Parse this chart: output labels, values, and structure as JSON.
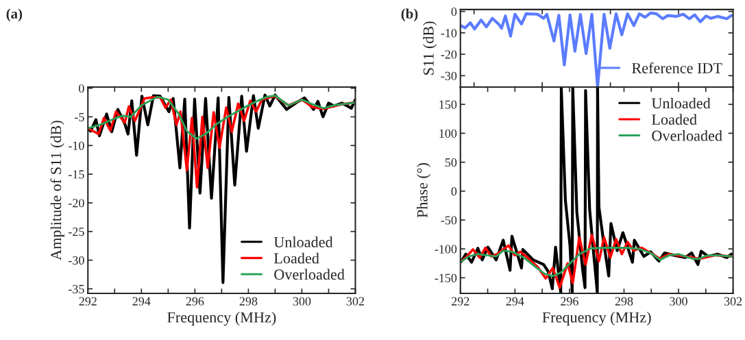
{
  "chart_data": [
    {
      "type": "line",
      "title": "(a)",
      "xlabel": "Frequency (MHz)",
      "ylabel": "Amplitude of S11 (dB)",
      "xlim": [
        292,
        302
      ],
      "xticks": [
        292,
        {
          "value": 293,
          "label": null
        },
        294,
        {
          "value": 295,
          "label": null
        },
        296,
        {
          "value": 297,
          "label": null
        },
        298,
        {
          "value": 299,
          "label": null
        },
        300,
        {
          "value": 301,
          "label": null
        },
        302
      ],
      "ylim": [
        -35.8,
        0.2
      ],
      "yticks": [
        0,
        -5,
        -10,
        -15,
        -20,
        -25,
        -30,
        -35
      ],
      "grid": false,
      "legend": "bottom right",
      "line_style": "solid",
      "marker": "none",
      "series": [
        {
          "name": "Unloaded",
          "color": "#000000",
          "x": [
            292.0,
            292.1,
            292.3,
            292.43,
            292.7,
            292.89,
            293.12,
            293.38,
            293.5,
            293.64,
            293.82,
            294.02,
            294.24,
            294.45,
            294.7,
            295.03,
            295.19,
            295.44,
            295.62,
            295.8,
            295.99,
            296.19,
            296.4,
            296.62,
            296.87,
            297.05,
            297.27,
            297.49,
            297.75,
            297.93,
            298.19,
            298.37,
            298.62,
            298.8,
            299.0,
            299.43,
            299.8,
            300.1,
            300.44,
            300.6,
            300.79,
            301.0,
            301.2,
            301.5,
            301.85,
            302.0
          ],
          "values": [
            -7.0,
            -7.5,
            -5.5,
            -8.3,
            -4.5,
            -7.6,
            -3.7,
            -6.2,
            -8.0,
            -2.2,
            -11.7,
            -1.4,
            -6.4,
            -1.3,
            -1.4,
            -4.1,
            -1.8,
            -13.9,
            -1.9,
            -24.4,
            -1.9,
            -18.3,
            -1.8,
            -19.2,
            -1.7,
            -33.9,
            -1.6,
            -16.9,
            -1.4,
            -11.0,
            -1.3,
            -7.0,
            -1.2,
            -3.1,
            -1.2,
            -3.7,
            -2.5,
            -1.7,
            -3.7,
            -2.3,
            -5.0,
            -2.6,
            -3.1,
            -2.6,
            -3.5,
            -2.0
          ]
        },
        {
          "name": "Loaded",
          "color": "#ff0000",
          "x": [
            292.0,
            292.4,
            292.6,
            292.84,
            293.05,
            293.38,
            293.53,
            293.76,
            294.11,
            294.4,
            294.7,
            294.9,
            295.1,
            295.31,
            295.46,
            295.7,
            295.89,
            296.08,
            296.28,
            296.48,
            296.7,
            296.92,
            297.17,
            297.38,
            297.62,
            297.84,
            298.07,
            298.29,
            298.5,
            298.8,
            299.0,
            299.5,
            300.0,
            300.4,
            300.8,
            301.5,
            302.0
          ],
          "values": [
            -7.0,
            -8.0,
            -5.2,
            -7.4,
            -4.1,
            -6.0,
            -3.2,
            -5.7,
            -1.8,
            -1.6,
            -1.6,
            -3.4,
            -2.0,
            -6.4,
            -4.1,
            -14.3,
            -5.2,
            -17.3,
            -5.0,
            -13.9,
            -4.2,
            -10.4,
            -3.4,
            -7.6,
            -2.7,
            -5.7,
            -2.2,
            -4.1,
            -2.0,
            -1.6,
            -1.4,
            -3.0,
            -2.0,
            -3.3,
            -3.6,
            -2.8,
            -2.5
          ]
        },
        {
          "name": "Overloaded",
          "color": "#2ba35a",
          "x": [
            292.0,
            292.5,
            293.0,
            293.3,
            293.6,
            294.0,
            294.6,
            295.0,
            295.4,
            295.7,
            296.06,
            296.4,
            296.8,
            297.3,
            297.8,
            298.3,
            298.7,
            299.0,
            299.5,
            300.0,
            300.4,
            300.8,
            301.2,
            301.5,
            302.0
          ],
          "values": [
            -7.0,
            -6.3,
            -5.3,
            -4.8,
            -5.0,
            -3.0,
            -1.5,
            -2.0,
            -4.5,
            -7.5,
            -8.8,
            -8.0,
            -6.3,
            -4.8,
            -3.5,
            -2.3,
            -1.5,
            -1.3,
            -3.0,
            -2.0,
            -2.8,
            -3.5,
            -3.0,
            -2.8,
            -2.5
          ]
        }
      ]
    },
    {
      "type": "line",
      "title": "(b)",
      "ylabel": "S11 (dB)",
      "xlim": [
        292,
        302
      ],
      "xticks": [
        {
          "value": 292.5,
          "label": null
        },
        {
          "value": 295,
          "label": null
        },
        {
          "value": 297.5,
          "label": null
        },
        {
          "value": 300,
          "label": null
        }
      ],
      "ylim": [
        -35.3,
        0.9
      ],
      "yticks": [
        0,
        -10,
        -20,
        -30
      ],
      "tick_labels": "y",
      "grid": false,
      "legend": "bottom right",
      "line_style": "solid",
      "marker": "none",
      "series": [
        {
          "name": "Reference IDT",
          "color": "#5b7cff",
          "x": [
            292.03,
            292.17,
            292.36,
            292.52,
            292.76,
            292.95,
            293.17,
            293.4,
            293.51,
            293.65,
            293.84,
            294.0,
            294.24,
            294.41,
            294.83,
            295.05,
            295.17,
            295.43,
            295.61,
            295.81,
            296.02,
            296.2,
            296.4,
            296.61,
            296.82,
            297.03,
            297.27,
            297.48,
            297.71,
            297.92,
            298.13,
            298.36,
            298.56,
            298.77,
            298.98,
            299.19,
            299.42,
            299.61,
            299.91,
            300.17,
            300.4,
            300.59,
            300.8,
            301.01,
            301.18,
            301.43,
            301.77,
            301.94
          ],
          "values": [
            -6.7,
            -7.7,
            -5.3,
            -8.2,
            -4.0,
            -7.2,
            -3.2,
            -5.9,
            -7.8,
            -2.1,
            -11.5,
            -1.3,
            -5.9,
            -1.1,
            -1.3,
            -3.2,
            -1.3,
            -13.8,
            -1.8,
            -25.0,
            -1.6,
            -18.6,
            -1.4,
            -19.7,
            -1.3,
            -35.3,
            -1.3,
            -17.2,
            -1.1,
            -10.9,
            -1.1,
            -6.6,
            -1.1,
            -2.7,
            -0.7,
            -1.1,
            -3.4,
            -1.9,
            -2.3,
            -1.3,
            -3.4,
            -1.6,
            -4.8,
            -2.1,
            -3.2,
            -2.3,
            -3.4,
            -1.9
          ]
        }
      ]
    },
    {
      "type": "line",
      "xlabel": "Frequency (MHz)",
      "ylabel": "Phase (°)",
      "xlim": [
        292,
        302
      ],
      "xticks": [
        292,
        {
          "value": 293,
          "label": null
        },
        294,
        {
          "value": 295,
          "label": null
        },
        296,
        {
          "value": 297,
          "label": null
        },
        298,
        {
          "value": 299,
          "label": null
        },
        300,
        {
          "value": 301,
          "label": null
        },
        302
      ],
      "ylim": [
        -177,
        180
      ],
      "yticks": [
        150,
        100,
        50,
        0,
        -50,
        -100,
        -150
      ],
      "grid": false,
      "legend": "top right",
      "line_style": "solid",
      "marker": "none",
      "series": [
        {
          "name": "Unloaded",
          "color": "#000000",
          "x": [
            292.03,
            292.2,
            292.41,
            292.64,
            292.8,
            293.01,
            293.31,
            293.57,
            293.82,
            293.89,
            294.24,
            294.29,
            294.67,
            295.05,
            295.22,
            295.37,
            295.49,
            295.68,
            295.7,
            295.85,
            296.02,
            296.1,
            296.12,
            296.27,
            296.48,
            296.57,
            296.59,
            296.74,
            296.86,
            297.02,
            297.03,
            297.08,
            297.25,
            297.44,
            297.52,
            297.75,
            297.96,
            298.31,
            298.38,
            298.73,
            298.98,
            299.28,
            299.49,
            299.83,
            300.25,
            300.48,
            300.71,
            300.83,
            301.09,
            301.43,
            301.77,
            301.94
          ],
          "values": [
            -122,
            -109,
            -123,
            -99,
            -119,
            -97,
            -119,
            -85,
            -137,
            -78,
            -133,
            -101,
            -119,
            -127,
            -139,
            -169,
            -97,
            -176,
            178,
            -16,
            -95,
            -175,
            179,
            -36,
            -135,
            -167,
            174,
            -32,
            -95,
            -175,
            179,
            -28,
            -87,
            -147,
            -56,
            -103,
            -72,
            -123,
            -85,
            -113,
            -105,
            -121,
            -107,
            -111,
            -115,
            -107,
            -127,
            -104,
            -113,
            -109,
            -115,
            -109
          ]
        },
        {
          "name": "Loaded",
          "color": "#ff0000",
          "x": [
            292.03,
            292.2,
            292.46,
            292.71,
            292.92,
            293.13,
            293.35,
            293.57,
            293.77,
            293.99,
            294.2,
            294.41,
            294.83,
            295.13,
            295.39,
            295.64,
            295.93,
            296.12,
            296.36,
            296.59,
            296.82,
            297.08,
            297.27,
            297.5,
            297.71,
            297.92,
            298.13,
            298.35,
            298.65,
            298.98,
            299.32,
            299.66,
            300.25,
            300.76,
            301.35,
            301.94
          ],
          "values": [
            -121,
            -115,
            -101,
            -115,
            -98,
            -113,
            -109,
            -101,
            -94,
            -111,
            -105,
            -113,
            -131,
            -151,
            -133,
            -167,
            -125,
            -159,
            -80,
            -127,
            -76,
            -121,
            -80,
            -115,
            -83,
            -109,
            -88,
            -103,
            -98,
            -107,
            -117,
            -109,
            -113,
            -117,
            -111,
            -113
          ]
        },
        {
          "name": "Overloaded",
          "color": "#2ba35a",
          "x": [
            292.03,
            292.3,
            292.64,
            292.97,
            293.31,
            293.57,
            293.9,
            294.33,
            294.75,
            295.09,
            295.39,
            295.68,
            296.02,
            296.36,
            296.78,
            297.29,
            297.71,
            298.13,
            298.56,
            298.98,
            299.32,
            299.66,
            300.0,
            300.25,
            300.5,
            300.76,
            301.01,
            301.35,
            301.69,
            301.94
          ],
          "values": [
            -122,
            -113,
            -109,
            -111,
            -113,
            -103,
            -105,
            -115,
            -131,
            -143,
            -147,
            -141,
            -125,
            -109,
            -99,
            -98,
            -98,
            -98,
            -100,
            -107,
            -119,
            -111,
            -109,
            -113,
            -117,
            -117,
            -112,
            -111,
            -112,
            -113
          ]
        }
      ]
    }
  ]
}
